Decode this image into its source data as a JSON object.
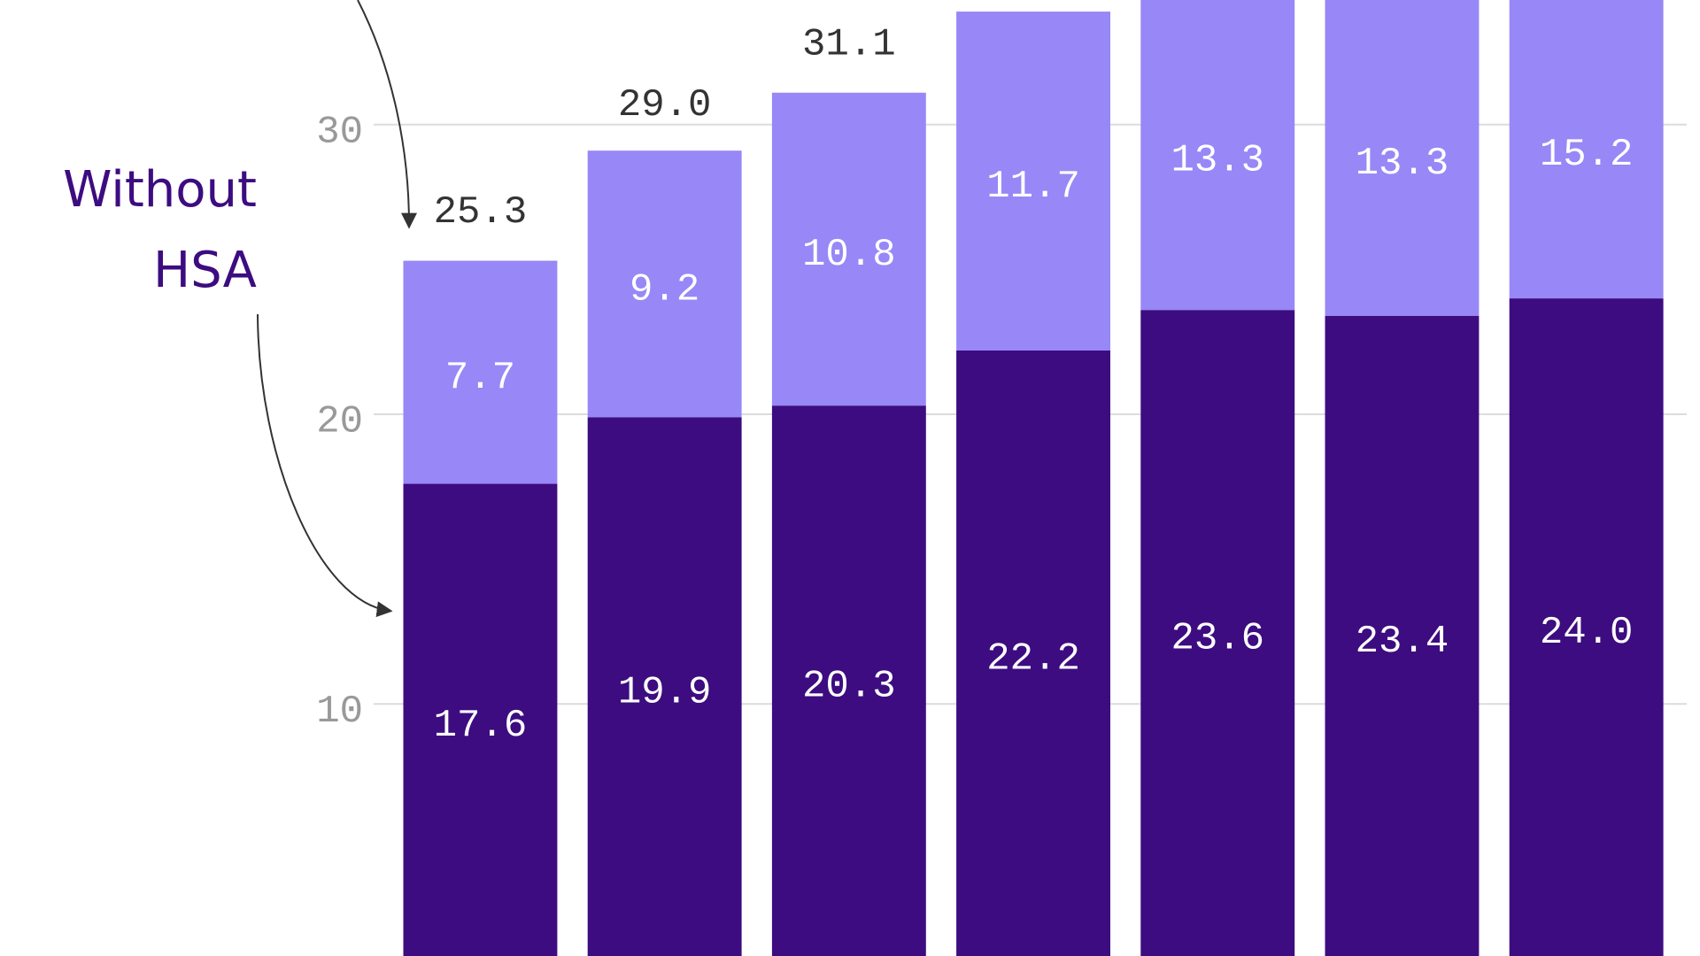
{
  "chart_data": {
    "type": "stacked_bar",
    "annotation": "Without HSA",
    "categories": [
      null,
      null,
      null,
      null,
      null,
      null,
      null
    ],
    "series": [
      {
        "name": "Without HSA",
        "color": "#3d0c80",
        "values": [
          17.6,
          19.9,
          20.3,
          22.2,
          23.6,
          23.4,
          24.0
        ],
        "value_labels": [
          "17.6",
          "19.9",
          "20.3",
          "22.2",
          "23.6",
          "23.4",
          "24.0"
        ]
      },
      {
        "color": "#9887f6",
        "values": [
          7.7,
          9.2,
          10.8,
          11.7,
          13.3,
          13.3,
          15.2
        ],
        "value_labels": [
          "7.7",
          "9.2",
          "10.8",
          "11.7",
          "13.3",
          "13.3",
          "15.2"
        ]
      }
    ],
    "totals": [
      25.3,
      29.0,
      31.1,
      null,
      null,
      null,
      null
    ],
    "total_labels": [
      "25.3",
      "29.0",
      "31.1",
      null,
      null,
      null,
      null
    ],
    "ylim": [
      1.3,
      34.3
    ],
    "yticks": [
      10,
      20,
      30
    ],
    "grid": true
  }
}
